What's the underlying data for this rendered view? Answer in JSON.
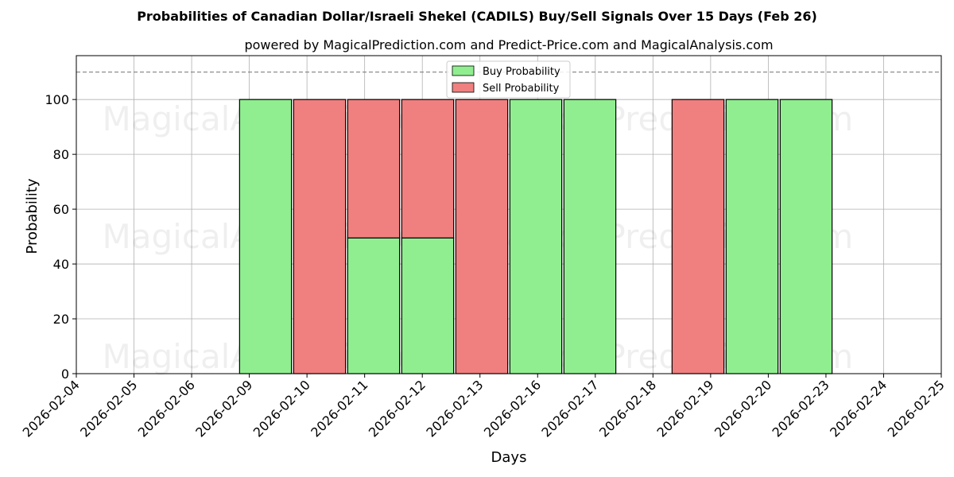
{
  "chart_data": {
    "type": "bar",
    "stacked": true,
    "title": "Probabilities of Canadian Dollar/Israeli Shekel (CADILS) Buy/Sell Signals Over 15 Days (Feb 26)",
    "subtitle": "powered by MagicalPrediction.com and Predict-Price.com and MagicalAnalysis.com",
    "xlabel": "Days",
    "ylabel": "Probability",
    "ylim": [
      0,
      116
    ],
    "yticks": [
      0,
      20,
      40,
      60,
      80,
      100
    ],
    "reference_line": 110,
    "grid": true,
    "legend_position": "upper center",
    "categories": [
      "2026-02-04",
      "2026-02-05",
      "2026-02-06",
      "2026-02-09",
      "2026-02-10",
      "2026-02-11",
      "2026-02-12",
      "2026-02-13",
      "2026-02-16",
      "2026-02-17",
      "2026-02-18",
      "2026-02-19",
      "2026-02-20",
      "2026-02-23",
      "2026-02-24",
      "2026-02-25"
    ],
    "series": [
      {
        "name": "Buy Probability",
        "color": "#90ee90",
        "values": [
          null,
          null,
          null,
          100,
          0,
          49.5,
          49.5,
          0,
          100,
          100,
          null,
          0,
          100,
          100,
          null,
          null
        ]
      },
      {
        "name": "Sell Probability",
        "color": "#f08080",
        "values": [
          null,
          null,
          null,
          0,
          100,
          50.5,
          50.5,
          100,
          0,
          0,
          null,
          100,
          0,
          0,
          null,
          null
        ]
      }
    ],
    "watermarks": [
      "MagicalAnalysis.com",
      "MagicalPrediction.com",
      "MagicalAnalysis.com",
      "MagicalPrediction.com",
      "MagicalAnalysis.com",
      "MagicalPrediction.com"
    ]
  }
}
